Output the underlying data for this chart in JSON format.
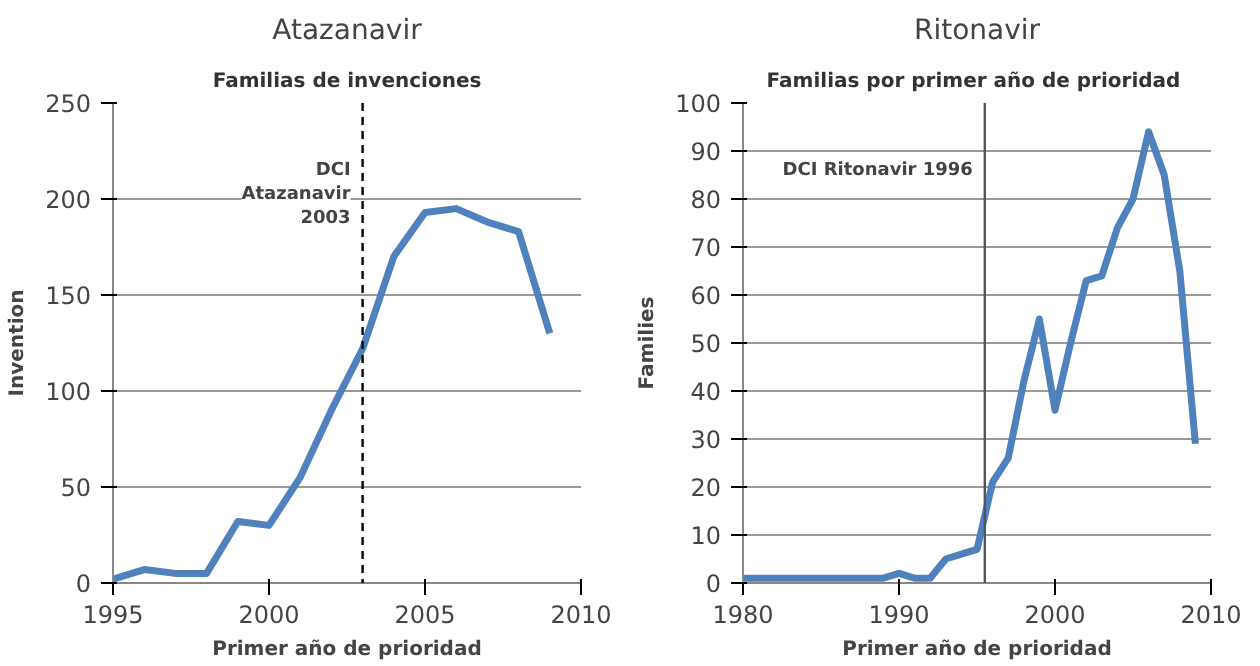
{
  "chart_data": [
    {
      "type": "line",
      "title": "Atazanavir",
      "subtitle": "Familias de invenciones",
      "xlabel": "Primer año de prioridad",
      "ylabel": "Invention",
      "x": [
        1995,
        1996,
        1997,
        1998,
        1999,
        2000,
        2001,
        2002,
        2003,
        2004,
        2005,
        2006,
        2007,
        2008,
        2009
      ],
      "series": [
        {
          "color": "#4f81bd",
          "values": [
            2,
            7,
            5,
            5,
            32,
            30,
            55,
            90,
            122,
            170,
            193,
            195,
            188,
            183,
            130
          ]
        }
      ],
      "xlim": [
        1995,
        2010
      ],
      "xticks": [
        1995,
        2000,
        2005,
        2010
      ],
      "ylim": [
        0,
        250
      ],
      "yticks": [
        0,
        50,
        100,
        150,
        200,
        250
      ],
      "grid": "y",
      "ref_lines": [
        {
          "axis": "x",
          "value": 2003,
          "label": "DCI\nAtazanavir\n2003",
          "color": "#000000",
          "line_style": "dashed"
        }
      ]
    },
    {
      "type": "line",
      "title": "Ritonavir",
      "subtitle": "Familias  por primer año de prioridad",
      "xlabel": "Primer año de prioridad",
      "ylabel": "Families",
      "x": [
        1980,
        1981,
        1982,
        1983,
        1984,
        1985,
        1986,
        1987,
        1988,
        1989,
        1990,
        1991,
        1992,
        1993,
        1994,
        1995,
        1996,
        1997,
        1998,
        1999,
        2000,
        2001,
        2002,
        2003,
        2004,
        2005,
        2006,
        2007,
        2008,
        2009
      ],
      "series": [
        {
          "color": "#4f81bd",
          "values": [
            1,
            1,
            1,
            1,
            1,
            1,
            1,
            1,
            1,
            1,
            2,
            1,
            1,
            5,
            6,
            7,
            21,
            26,
            42,
            55,
            36,
            50,
            63,
            64,
            74,
            80,
            94,
            85,
            65,
            29
          ]
        }
      ],
      "xlim": [
        1980,
        2010
      ],
      "xticks": [
        1980,
        1990,
        2000,
        2010
      ],
      "ylim": [
        0,
        100
      ],
      "yticks": [
        0,
        10,
        20,
        30,
        40,
        50,
        60,
        70,
        80,
        90,
        100
      ],
      "grid": "y",
      "ref_lines": [
        {
          "axis": "x",
          "value": 1995.5,
          "label": "DCI Ritonavir 1996",
          "color": "#555555",
          "line_style": "solid"
        }
      ]
    }
  ]
}
